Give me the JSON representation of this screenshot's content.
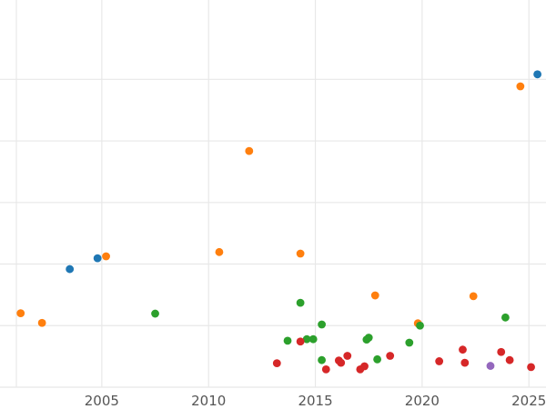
{
  "chart_data": {
    "type": "scatter",
    "title": "",
    "xlabel": "",
    "ylabel": "",
    "grid": true,
    "legend": "none",
    "xlim": [
      2001.0,
      2025.8
    ],
    "ylim": [
      0,
      1000
    ],
    "x_ticks": [
      2005,
      2010,
      2015,
      2020,
      2025
    ],
    "x_tick_labels": [
      "2005",
      "2010",
      "2015",
      "2020",
      "2025"
    ],
    "y_gridlines": [
      0,
      159,
      318,
      477,
      636,
      795
    ],
    "colors": {
      "blue": "#1f77b4",
      "orange": "#ff7f0e",
      "green": "#2ca02c",
      "red": "#d62728",
      "purple": "#9467bd"
    },
    "series": [
      {
        "color": "#1f77b4",
        "points": [
          [
            2003.5,
            305
          ],
          [
            2004.8,
            333
          ],
          [
            2025.4,
            808
          ]
        ]
      },
      {
        "color": "#ff7f0e",
        "points": [
          [
            2001.2,
            191
          ],
          [
            2002.2,
            166
          ],
          [
            2005.2,
            338
          ],
          [
            2010.5,
            349
          ],
          [
            2011.9,
            610
          ],
          [
            2014.3,
            345
          ],
          [
            2017.8,
            237
          ],
          [
            2019.8,
            165
          ],
          [
            2022.4,
            235
          ],
          [
            2024.6,
            777
          ]
        ]
      },
      {
        "color": "#2ca02c",
        "points": [
          [
            2007.5,
            190
          ],
          [
            2013.7,
            120
          ],
          [
            2014.3,
            218
          ],
          [
            2014.6,
            124
          ],
          [
            2014.9,
            124
          ],
          [
            2015.3,
            162
          ],
          [
            2015.3,
            70
          ],
          [
            2017.4,
            123
          ],
          [
            2017.5,
            128
          ],
          [
            2017.9,
            72
          ],
          [
            2019.4,
            115
          ],
          [
            2019.9,
            159
          ],
          [
            2023.9,
            180
          ]
        ]
      },
      {
        "color": "#d62728",
        "points": [
          [
            2013.2,
            62
          ],
          [
            2014.3,
            118
          ],
          [
            2015.5,
            46
          ],
          [
            2016.1,
            69
          ],
          [
            2016.2,
            63
          ],
          [
            2016.5,
            81
          ],
          [
            2017.1,
            46
          ],
          [
            2017.3,
            54
          ],
          [
            2018.5,
            81
          ],
          [
            2020.8,
            67
          ],
          [
            2021.9,
            97
          ],
          [
            2022.0,
            63
          ],
          [
            2023.7,
            91
          ],
          [
            2024.1,
            70
          ],
          [
            2025.1,
            52
          ]
        ]
      },
      {
        "color": "#9467bd",
        "points": [
          [
            2023.2,
            55
          ]
        ]
      }
    ]
  }
}
